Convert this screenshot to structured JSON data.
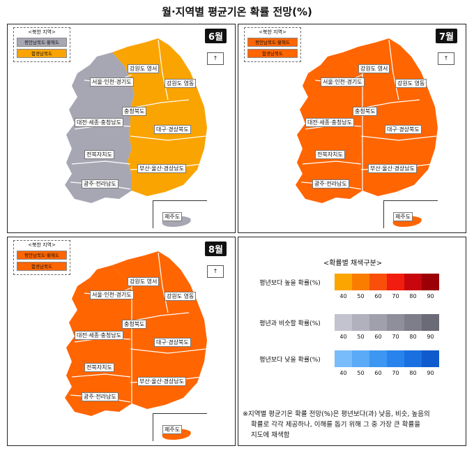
{
  "title": "월·지역별 평균기온 확률 전망(%)",
  "north_korea_legend": {
    "title": "<북한 지역>",
    "items": [
      "평안남북도·황해도",
      "함경남북도"
    ]
  },
  "compass_glyph": "↑",
  "maps": [
    {
      "month": "6월",
      "colors": {
        "west": "#a7a7b4",
        "east": "#f9a400",
        "jeju": "#a7a7b4",
        "nk1": "#a7a7b4",
        "nk2": "#f9a400"
      },
      "regions": [
        "강원도 영서",
        "강원도 영동",
        "서울·인천·경기도",
        "충청북도",
        "대전·세종·충청남도",
        "대구·경상북도",
        "전북자치도",
        "부산·울산·경상남도",
        "광주·전라남도",
        "제주도"
      ]
    },
    {
      "month": "7월",
      "colors": {
        "west": "#ff6500",
        "east": "#ff6500",
        "jeju": "#ff6500",
        "nk1": "#ff6500",
        "nk2": "#ff6500"
      },
      "regions": [
        "강원도 영서",
        "강원도 영동",
        "서울·인천·경기도",
        "충청북도",
        "대전·세종·충청남도",
        "대구·경상북도",
        "전북자치도",
        "부산·울산·경상남도",
        "광주·전라남도",
        "제주도"
      ]
    },
    {
      "month": "8월",
      "colors": {
        "west": "#ff6500",
        "east": "#ff6500",
        "jeju": "#ff6500",
        "nk1": "#ff6500",
        "nk2": "#ff6500"
      },
      "regions": [
        "강원도 영서",
        "강원도 영동",
        "서울·인천·경기도",
        "충청북도",
        "대전·세종·충청남도",
        "대구·경상북도",
        "전북자치도",
        "부산·울산·경상남도",
        "광주·전라남도",
        "제주도"
      ]
    }
  ],
  "legend": {
    "title": "<확률별 채색구분>",
    "categories": [
      {
        "label": "평년보다 높을 확률(%)",
        "colors": [
          "#fca500",
          "#fb7d00",
          "#f94f0a",
          "#f11e0f",
          "#c8060d",
          "#9c0006"
        ]
      },
      {
        "label": "평년과 비슷할 확률(%)",
        "colors": [
          "#c3c3cf",
          "#b1b1be",
          "#a0a0ad",
          "#8f8f9c",
          "#7e7e8b",
          "#6b6b78"
        ]
      },
      {
        "label": "평년보다 낮을 확률(%)",
        "colors": [
          "#78bcfb",
          "#5aaaf8",
          "#3d97f2",
          "#2883ec",
          "#1a70e0",
          "#0f5bcd"
        ]
      }
    ],
    "ticks": [
      "40",
      "50",
      "60",
      "70",
      "80",
      "90"
    ]
  },
  "note": [
    "※지역별 평균기온 확률 전망(%)은 평년보다(과) 낮음, 비슷, 높음의",
    "확률로 각각 제공하나, 이해를 돕기 위해 그 중 가장 큰 확률을",
    "지도에 채색함"
  ]
}
